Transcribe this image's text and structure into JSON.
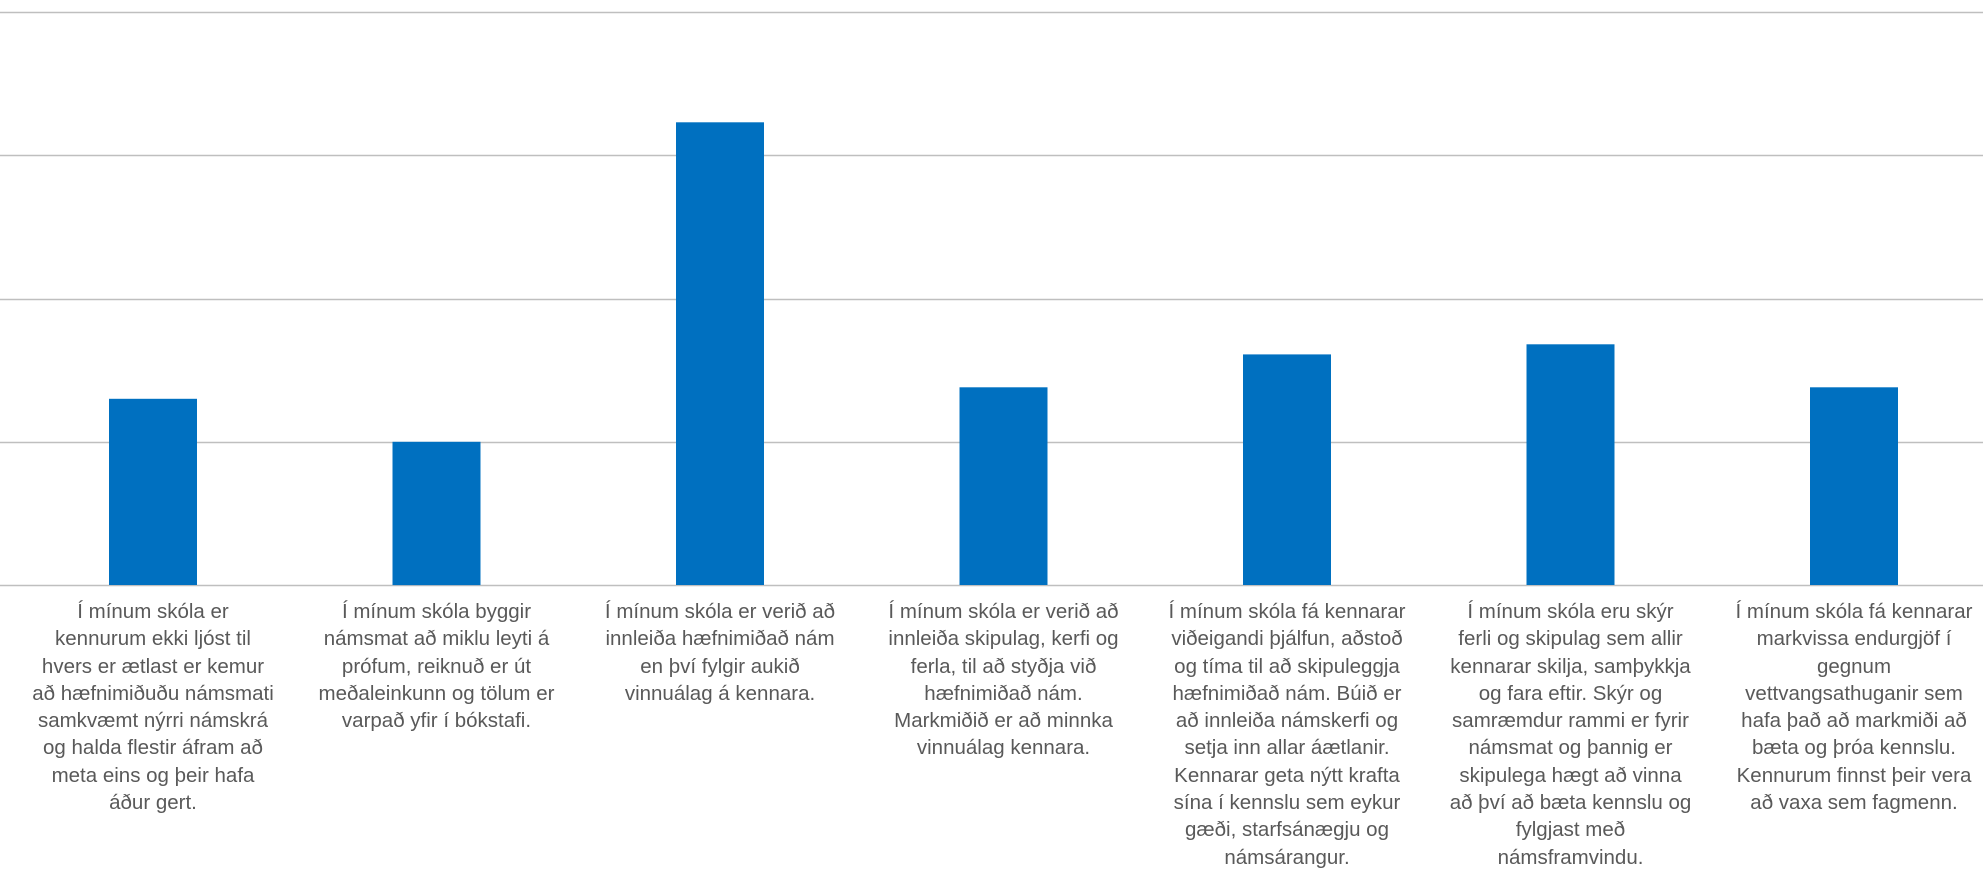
{
  "chart_data": {
    "type": "bar",
    "title": "",
    "xlabel": "",
    "ylabel": "",
    "ylim": [
      0,
      4
    ],
    "grid": true,
    "gridline_values": [
      0,
      1,
      2,
      3,
      4
    ],
    "legend": "none",
    "colors": {
      "bar": "#0070C0",
      "grid": "#BFBFBF",
      "label": "#595959"
    },
    "categories": [
      "Í mínum skóla er\nkennurum ekki ljóst til\nhvers er ætlast er kemur\nað hæfnimiðuðu námsmati\nsamkvæmt nýrri námskrá\nog halda flestir áfram að\nmeta eins og þeir hafa\náður gert.",
      "Í mínum skóla byggir\nnámsmat að miklu leyti á\nprófum, reiknuð er út\nmeðaleinkunn og tölum er\nvarpað yfir í bókstafi.",
      "Í mínum skóla er verið að\ninnleiða hæfnimiðað nám\nen því fylgir aukið\nvinnuálag á kennara.",
      "Í mínum skóla er verið að\ninnleiða skipulag, kerfi og\nferla, til að styðja við\nhæfnimiðað nám.\nMarkmiðið er að minnka\nvinnuálag kennara.",
      "Í mínum skóla fá kennarar\nviðeigandi þjálfun, aðstoð\nog tíma til að skipuleggja\nhæfnimiðað nám. Búið er\nað innleiða námskerfi og\nsetja inn allar áætlanir.\nKennarar geta nýtt krafta\nsína í kennslu sem eykur\ngæði, starfsánægju og\nnámsárangur.",
      "Í mínum skóla eru skýr\nferli og skipulag sem allir\nkennarar skilja, samþykkja\nog fara eftir. Skýr og\nsamræmdur rammi er fyrir\nnámsmat og þannig er\nskipulega hægt að vinna\nað því að bæta kennslu og\nfylgjast með\nnámsframvindu.",
      "Í mínum skóla fá kennarar\nmarkvissa endurgjöf í\ngegnum\nvettvangsathuganir sem\nhafa það að markmiði að\nbæta og þróa kennslu.\nKennurum finnst þeir vera\nað vaxa sem fagmenn."
    ],
    "values": [
      1.3,
      1.0,
      3.23,
      1.38,
      1.61,
      1.68,
      1.38
    ]
  }
}
